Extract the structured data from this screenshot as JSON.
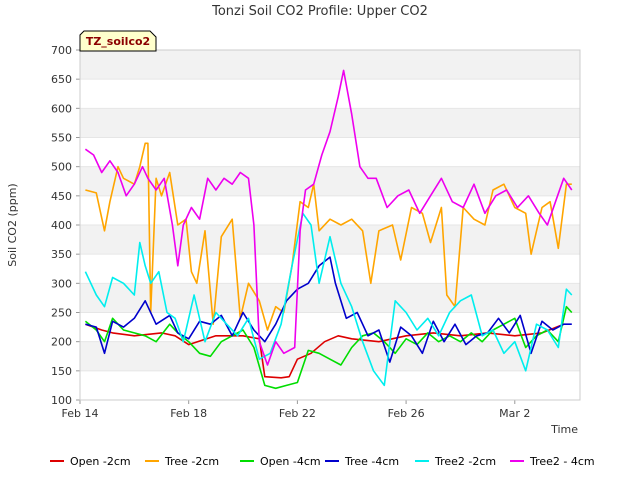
{
  "chart_data": {
    "type": "line",
    "title": "Tonzi Soil CO2 Profile: Upper CO2",
    "xlabel": "Time",
    "ylabel": "Soil CO2 (ppm)",
    "badge": "TZ_soilco2",
    "ylim": [
      100,
      700
    ],
    "xlim": [
      0,
      18.4
    ],
    "yticks": [
      100,
      150,
      200,
      250,
      300,
      350,
      400,
      450,
      500,
      550,
      600,
      650,
      700
    ],
    "xticks": [
      {
        "value": 0,
        "label": "Feb 14"
      },
      {
        "value": 4,
        "label": "Feb 18"
      },
      {
        "value": 8,
        "label": "Feb 22"
      },
      {
        "value": 12,
        "label": "Feb 26"
      },
      {
        "value": 16,
        "label": "Mar 2"
      }
    ],
    "grid": "horizontal-bands",
    "legend_position": "bottom",
    "series": [
      {
        "name": "Open -2cm",
        "color": "#dd0000",
        "points": [
          [
            0.2,
            230
          ],
          [
            0.8,
            220
          ],
          [
            1.2,
            215
          ],
          [
            2,
            210
          ],
          [
            3,
            215
          ],
          [
            3.5,
            210
          ],
          [
            4,
            195
          ],
          [
            5,
            210
          ],
          [
            6,
            210
          ],
          [
            6.6,
            205
          ],
          [
            6.8,
            140
          ],
          [
            7.4,
            138
          ],
          [
            7.7,
            140
          ],
          [
            8,
            170
          ],
          [
            8.5,
            180
          ],
          [
            9,
            200
          ],
          [
            9.5,
            210
          ],
          [
            10,
            205
          ],
          [
            11,
            200
          ],
          [
            12,
            210
          ],
          [
            13,
            215
          ],
          [
            14,
            210
          ],
          [
            15,
            215
          ],
          [
            16,
            210
          ],
          [
            17,
            215
          ],
          [
            17.8,
            230
          ]
        ]
      },
      {
        "name": "Tree -2cm",
        "color": "#ffa500",
        "points": [
          [
            0.2,
            460
          ],
          [
            0.6,
            455
          ],
          [
            0.9,
            390
          ],
          [
            1.1,
            440
          ],
          [
            1.4,
            500
          ],
          [
            1.6,
            480
          ],
          [
            2,
            470
          ],
          [
            2.2,
            500
          ],
          [
            2.4,
            540
          ],
          [
            2.5,
            540
          ],
          [
            2.6,
            250
          ],
          [
            2.8,
            480
          ],
          [
            3,
            450
          ],
          [
            3.3,
            490
          ],
          [
            3.6,
            400
          ],
          [
            3.9,
            410
          ],
          [
            4.1,
            320
          ],
          [
            4.3,
            300
          ],
          [
            4.6,
            390
          ],
          [
            4.9,
            230
          ],
          [
            5.2,
            380
          ],
          [
            5.6,
            410
          ],
          [
            5.9,
            240
          ],
          [
            6.2,
            300
          ],
          [
            6.6,
            270
          ],
          [
            6.9,
            220
          ],
          [
            7.2,
            260
          ],
          [
            7.5,
            250
          ],
          [
            7.8,
            330
          ],
          [
            8.1,
            440
          ],
          [
            8.4,
            430
          ],
          [
            8.6,
            470
          ],
          [
            8.8,
            390
          ],
          [
            9.2,
            410
          ],
          [
            9.6,
            400
          ],
          [
            10,
            410
          ],
          [
            10.4,
            390
          ],
          [
            10.7,
            300
          ],
          [
            11,
            390
          ],
          [
            11.5,
            400
          ],
          [
            11.8,
            340
          ],
          [
            12.2,
            430
          ],
          [
            12.6,
            420
          ],
          [
            12.9,
            370
          ],
          [
            13.3,
            430
          ],
          [
            13.5,
            280
          ],
          [
            13.8,
            260
          ],
          [
            14.1,
            430
          ],
          [
            14.5,
            410
          ],
          [
            14.9,
            400
          ],
          [
            15.2,
            460
          ],
          [
            15.6,
            470
          ],
          [
            16,
            430
          ],
          [
            16.4,
            420
          ],
          [
            16.6,
            350
          ],
          [
            17,
            430
          ],
          [
            17.3,
            440
          ],
          [
            17.6,
            360
          ],
          [
            17.9,
            470
          ],
          [
            18.1,
            470
          ]
        ]
      },
      {
        "name": "Open -4cm",
        "color": "#00dd00",
        "points": [
          [
            0.2,
            235
          ],
          [
            0.6,
            220
          ],
          [
            0.9,
            200
          ],
          [
            1.2,
            240
          ],
          [
            1.6,
            220
          ],
          [
            2,
            215
          ],
          [
            2.4,
            210
          ],
          [
            2.8,
            200
          ],
          [
            3.3,
            230
          ],
          [
            3.6,
            215
          ],
          [
            4,
            200
          ],
          [
            4.4,
            180
          ],
          [
            4.8,
            175
          ],
          [
            5.2,
            200
          ],
          [
            5.6,
            210
          ],
          [
            6,
            220
          ],
          [
            6.4,
            190
          ],
          [
            6.8,
            125
          ],
          [
            7.2,
            120
          ],
          [
            7.6,
            125
          ],
          [
            8,
            130
          ],
          [
            8.4,
            185
          ],
          [
            8.8,
            180
          ],
          [
            9.2,
            170
          ],
          [
            9.6,
            160
          ],
          [
            10,
            190
          ],
          [
            10.4,
            210
          ],
          [
            10.8,
            215
          ],
          [
            11.2,
            200
          ],
          [
            11.6,
            180
          ],
          [
            12,
            205
          ],
          [
            12.4,
            195
          ],
          [
            12.8,
            215
          ],
          [
            13.2,
            200
          ],
          [
            13.6,
            210
          ],
          [
            14,
            200
          ],
          [
            14.4,
            215
          ],
          [
            14.8,
            200
          ],
          [
            15.2,
            220
          ],
          [
            15.6,
            230
          ],
          [
            16,
            240
          ],
          [
            16.4,
            190
          ],
          [
            16.8,
            210
          ],
          [
            17.2,
            220
          ],
          [
            17.6,
            200
          ],
          [
            17.9,
            260
          ],
          [
            18.1,
            250
          ]
        ]
      },
      {
        "name": "Tree -4cm",
        "color": "#0000cc",
        "points": [
          [
            0.2,
            230
          ],
          [
            0.6,
            225
          ],
          [
            0.9,
            180
          ],
          [
            1.2,
            235
          ],
          [
            1.6,
            225
          ],
          [
            2,
            240
          ],
          [
            2.4,
            270
          ],
          [
            2.8,
            230
          ],
          [
            3.3,
            245
          ],
          [
            3.6,
            215
          ],
          [
            4,
            205
          ],
          [
            4.4,
            235
          ],
          [
            4.8,
            230
          ],
          [
            5.2,
            245
          ],
          [
            5.6,
            210
          ],
          [
            6,
            250
          ],
          [
            6.4,
            220
          ],
          [
            6.8,
            200
          ],
          [
            7.2,
            230
          ],
          [
            7.6,
            270
          ],
          [
            8,
            290
          ],
          [
            8.4,
            300
          ],
          [
            8.8,
            330
          ],
          [
            9.2,
            345
          ],
          [
            9.4,
            300
          ],
          [
            9.8,
            240
          ],
          [
            10.2,
            250
          ],
          [
            10.6,
            210
          ],
          [
            11,
            220
          ],
          [
            11.4,
            165
          ],
          [
            11.8,
            225
          ],
          [
            12.2,
            210
          ],
          [
            12.6,
            180
          ],
          [
            13,
            235
          ],
          [
            13.4,
            200
          ],
          [
            13.8,
            230
          ],
          [
            14.2,
            195
          ],
          [
            14.6,
            210
          ],
          [
            15,
            215
          ],
          [
            15.4,
            240
          ],
          [
            15.8,
            215
          ],
          [
            16.2,
            245
          ],
          [
            16.6,
            180
          ],
          [
            17,
            235
          ],
          [
            17.4,
            220
          ],
          [
            17.8,
            230
          ],
          [
            18.1,
            230
          ]
        ]
      },
      {
        "name": "Tree2 -2cm",
        "color": "#00eeee",
        "points": [
          [
            0.2,
            320
          ],
          [
            0.6,
            280
          ],
          [
            0.9,
            260
          ],
          [
            1.2,
            310
          ],
          [
            1.6,
            300
          ],
          [
            2,
            280
          ],
          [
            2.2,
            370
          ],
          [
            2.4,
            330
          ],
          [
            2.6,
            300
          ],
          [
            2.9,
            320
          ],
          [
            3.2,
            250
          ],
          [
            3.5,
            240
          ],
          [
            3.8,
            200
          ],
          [
            4.2,
            280
          ],
          [
            4.6,
            200
          ],
          [
            5,
            250
          ],
          [
            5.4,
            230
          ],
          [
            5.8,
            210
          ],
          [
            6.2,
            240
          ],
          [
            6.6,
            170
          ],
          [
            7,
            180
          ],
          [
            7.4,
            230
          ],
          [
            7.8,
            330
          ],
          [
            8.2,
            420
          ],
          [
            8.5,
            400
          ],
          [
            8.8,
            300
          ],
          [
            9.2,
            380
          ],
          [
            9.6,
            300
          ],
          [
            10,
            260
          ],
          [
            10.4,
            200
          ],
          [
            10.8,
            150
          ],
          [
            11.2,
            125
          ],
          [
            11.6,
            270
          ],
          [
            12,
            250
          ],
          [
            12.4,
            220
          ],
          [
            12.8,
            240
          ],
          [
            13.2,
            210
          ],
          [
            13.6,
            250
          ],
          [
            14,
            270
          ],
          [
            14.4,
            280
          ],
          [
            14.8,
            210
          ],
          [
            15.2,
            220
          ],
          [
            15.6,
            180
          ],
          [
            16,
            200
          ],
          [
            16.4,
            150
          ],
          [
            16.8,
            230
          ],
          [
            17.2,
            220
          ],
          [
            17.6,
            190
          ],
          [
            17.9,
            290
          ],
          [
            18.1,
            280
          ]
        ]
      },
      {
        "name": "Tree2 - 4cm",
        "color": "#ee00ee",
        "points": [
          [
            0.2,
            530
          ],
          [
            0.5,
            520
          ],
          [
            0.8,
            490
          ],
          [
            1.1,
            510
          ],
          [
            1.4,
            490
          ],
          [
            1.7,
            450
          ],
          [
            2,
            470
          ],
          [
            2.3,
            500
          ],
          [
            2.5,
            480
          ],
          [
            2.8,
            460
          ],
          [
            3.1,
            480
          ],
          [
            3.4,
            400
          ],
          [
            3.6,
            330
          ],
          [
            3.8,
            400
          ],
          [
            4.1,
            430
          ],
          [
            4.4,
            410
          ],
          [
            4.7,
            480
          ],
          [
            5,
            460
          ],
          [
            5.3,
            480
          ],
          [
            5.6,
            470
          ],
          [
            5.9,
            490
          ],
          [
            6.2,
            480
          ],
          [
            6.4,
            400
          ],
          [
            6.6,
            200
          ],
          [
            6.9,
            160
          ],
          [
            7.2,
            200
          ],
          [
            7.5,
            180
          ],
          [
            7.9,
            190
          ],
          [
            8.1,
            390
          ],
          [
            8.3,
            460
          ],
          [
            8.6,
            470
          ],
          [
            8.9,
            520
          ],
          [
            9.2,
            560
          ],
          [
            9.5,
            620
          ],
          [
            9.7,
            665
          ],
          [
            10,
            590
          ],
          [
            10.3,
            500
          ],
          [
            10.6,
            480
          ],
          [
            10.9,
            480
          ],
          [
            11.3,
            430
          ],
          [
            11.7,
            450
          ],
          [
            12.1,
            460
          ],
          [
            12.5,
            420
          ],
          [
            12.9,
            450
          ],
          [
            13.3,
            480
          ],
          [
            13.7,
            440
          ],
          [
            14.1,
            430
          ],
          [
            14.5,
            470
          ],
          [
            14.9,
            420
          ],
          [
            15.3,
            450
          ],
          [
            15.7,
            460
          ],
          [
            16.1,
            430
          ],
          [
            16.5,
            450
          ],
          [
            16.9,
            420
          ],
          [
            17.2,
            400
          ],
          [
            17.5,
            440
          ],
          [
            17.8,
            480
          ],
          [
            18.1,
            460
          ]
        ]
      }
    ]
  }
}
